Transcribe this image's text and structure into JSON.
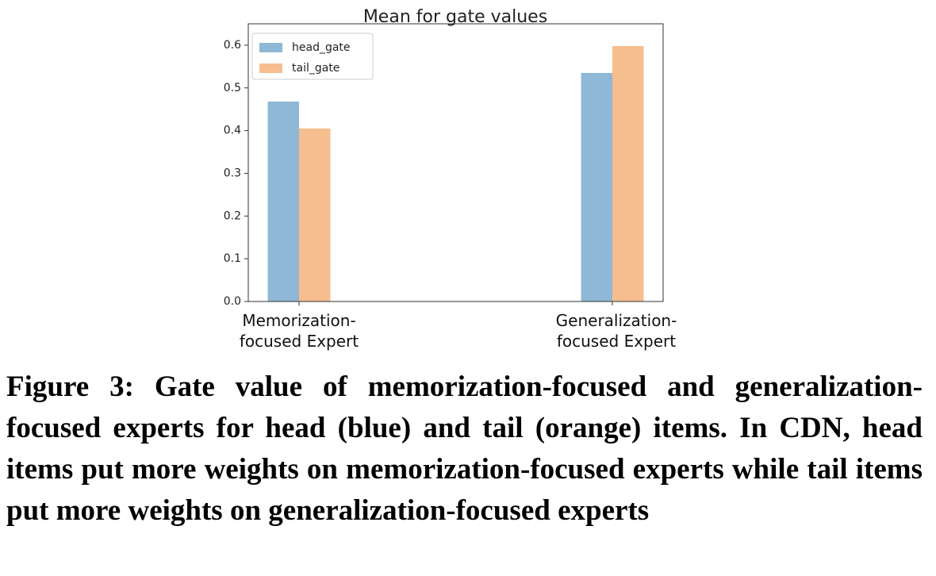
{
  "chart_data": {
    "type": "bar",
    "title": "Mean for gate values",
    "categories": [
      "Memorization-focused Expert",
      "Generalization-focused Expert"
    ],
    "series": [
      {
        "name": "head_gate",
        "color": "#8fb8d6",
        "values": [
          0.468,
          0.535
        ]
      },
      {
        "name": "tail_gate",
        "color": "#f6bd8f",
        "values": [
          0.405,
          0.598
        ]
      }
    ],
    "ylim": [
      0,
      0.65
    ],
    "yticks": [
      {
        "value": 0,
        "label": "0.0"
      },
      0.1,
      0.2,
      0.3,
      0.4,
      0.5,
      0.6
    ],
    "legend": "upper-left"
  },
  "caption": "Figure 3: Gate value of memorization-focused and generalization-focused experts for head (blue) and tail (orange) items. In CDN, head items put more weights on memorization-focused experts while tail items put more weights on generalization-focused experts"
}
